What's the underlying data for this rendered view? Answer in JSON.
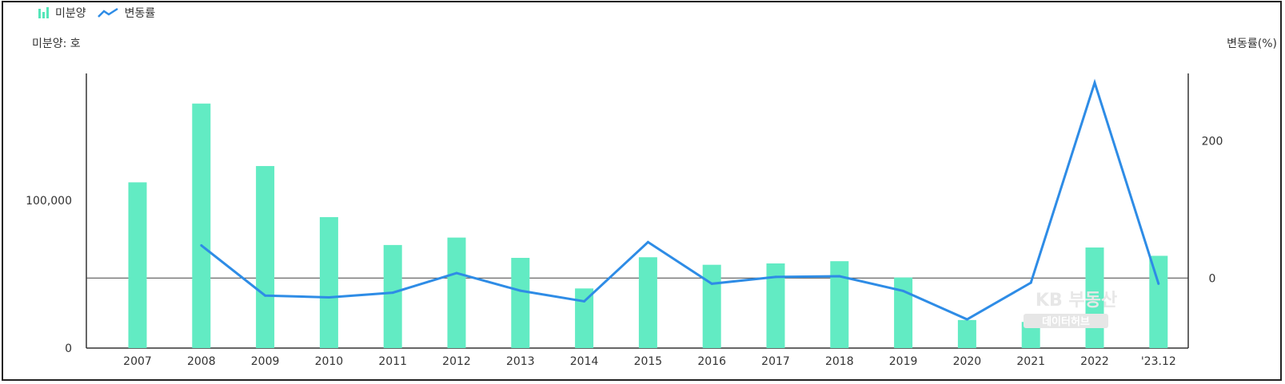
{
  "legend": {
    "bar_label": "미분양",
    "line_label": "변동률"
  },
  "units": {
    "left": "미분양: 호",
    "right": "변동률(%)"
  },
  "watermark": {
    "line1": "KB 부동산",
    "line2": "데이터허브"
  },
  "colors": {
    "bar": "#62ebc3",
    "line": "#2e8ce6",
    "axis": "#333333",
    "zero_line": "#444444"
  },
  "chart_data": {
    "type": "bar",
    "categories": [
      "2007",
      "2008",
      "2009",
      "2010",
      "2011",
      "2012",
      "2013",
      "2014",
      "2015",
      "2016",
      "2017",
      "2018",
      "2019",
      "2020",
      "2021",
      "2022",
      "'23.12"
    ],
    "series": [
      {
        "name": "미분양",
        "type": "bar",
        "axis": "left",
        "values": [
          112254,
          165599,
          123297,
          88706,
          69807,
          74835,
          61091,
          40379,
          61512,
          56413,
          57330,
          58838,
          47797,
          19005,
          17710,
          68107,
          62489
        ]
      },
      {
        "name": "변동률",
        "type": "line",
        "axis": "right",
        "values": [
          null,
          47.5,
          -25.5,
          -28.1,
          -21.3,
          7.2,
          -18.4,
          -33.9,
          52.3,
          -8.3,
          1.6,
          2.6,
          -18.8,
          -60.2,
          -6.8,
          284.6,
          -8.2
        ]
      }
    ],
    "y_left": {
      "ticks": [
        0,
        100000
      ],
      "tick_labels": [
        "0",
        "100,000"
      ],
      "range": [
        0,
        186000
      ]
    },
    "y_right": {
      "ticks": [
        0,
        200
      ],
      "tick_labels": [
        "0",
        "200"
      ],
      "range": [
        -102,
        298
      ]
    },
    "legend_position": "top-left",
    "grid": false
  }
}
